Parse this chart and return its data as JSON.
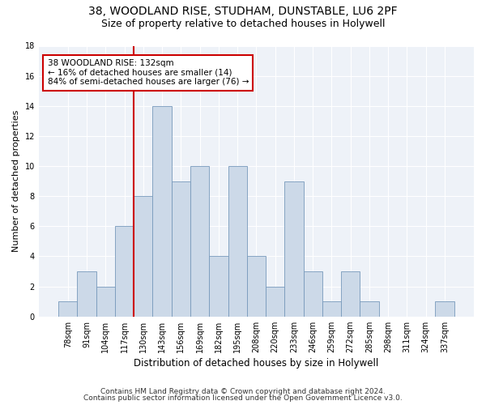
{
  "title1": "38, WOODLAND RISE, STUDHAM, DUNSTABLE, LU6 2PF",
  "title2": "Size of property relative to detached houses in Holywell",
  "xlabel": "Distribution of detached houses by size in Holywell",
  "ylabel": "Number of detached properties",
  "categories": [
    "78sqm",
    "91sqm",
    "104sqm",
    "117sqm",
    "130sqm",
    "143sqm",
    "156sqm",
    "169sqm",
    "182sqm",
    "195sqm",
    "208sqm",
    "220sqm",
    "233sqm",
    "246sqm",
    "259sqm",
    "272sqm",
    "285sqm",
    "298sqm",
    "311sqm",
    "324sqm",
    "337sqm"
  ],
  "values": [
    1,
    3,
    2,
    6,
    8,
    14,
    9,
    10,
    4,
    10,
    4,
    2,
    9,
    3,
    1,
    3,
    1,
    0,
    0,
    0,
    1
  ],
  "bar_color": "#ccd9e8",
  "bar_edge_color": "#7799bb",
  "red_line_color": "#cc0000",
  "annotation_line1": "38 WOODLAND RISE: 132sqm",
  "annotation_line2": "← 16% of detached houses are smaller (14)",
  "annotation_line3": "84% of semi-detached houses are larger (76) →",
  "annotation_box_color": "#ffffff",
  "annotation_box_edge_color": "#cc0000",
  "ylim": [
    0,
    18
  ],
  "yticks": [
    0,
    2,
    4,
    6,
    8,
    10,
    12,
    14,
    16,
    18
  ],
  "footer1": "Contains HM Land Registry data © Crown copyright and database right 2024.",
  "footer2": "Contains public sector information licensed under the Open Government Licence v3.0.",
  "bg_color": "#ffffff",
  "plot_bg_color": "#eef2f8",
  "title1_fontsize": 10,
  "title2_fontsize": 9,
  "xlabel_fontsize": 8.5,
  "ylabel_fontsize": 8,
  "tick_fontsize": 7,
  "footer_fontsize": 6.5
}
